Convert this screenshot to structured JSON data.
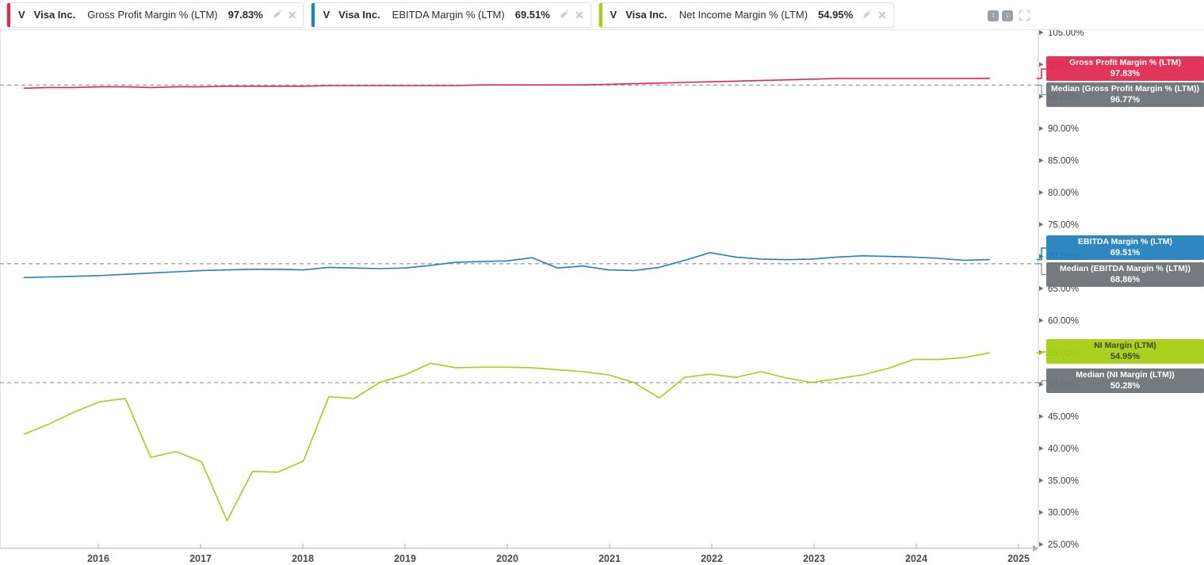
{
  "legend": {
    "pills": [
      {
        "ticker": "V",
        "company": "Visa Inc.",
        "metric": "Gross Profit Margin % (LTM)",
        "value": "97.83%",
        "color": "#e0294f"
      },
      {
        "ticker": "V",
        "company": "Visa Inc.",
        "metric": "EBITDA Margin % (LTM)",
        "value": "69.51%",
        "color": "#2180be"
      },
      {
        "ticker": "V",
        "company": "Visa Inc.",
        "metric": "Net Income Margin % (LTM)",
        "value": "54.95%",
        "color": "#a6ce13"
      }
    ]
  },
  "toolbar": {
    "up_label": "↑",
    "down_label": "↓"
  },
  "chart_data": {
    "type": "line",
    "frequency": "quarterly",
    "start_year_frac": 2015.27,
    "end_year_frac": 2024.72,
    "x_axis": {
      "ticks": [
        "2016",
        "2017",
        "2018",
        "2019",
        "2020",
        "2021",
        "2022",
        "2023",
        "2024",
        "2025"
      ]
    },
    "y_axis": {
      "min": 25,
      "max": 105,
      "step": 5,
      "ticks": [
        "105.00%",
        "100.00%",
        "95.00%",
        "90.00%",
        "85.00%",
        "80.00%",
        "75.00%",
        "70.00%",
        "65.00%",
        "60.00%",
        "55.00%",
        "50.00%",
        "45.00%",
        "40.00%",
        "35.00%",
        "30.00%",
        "25.00%"
      ]
    },
    "grid": "off",
    "legend_position": "top",
    "series": [
      {
        "name": "Gross Profit Margin % (LTM)",
        "current": "97.83%",
        "color": "#e0294f",
        "label_fg": "#ffffff",
        "values": [
          96.3,
          96.4,
          96.4,
          96.5,
          96.5,
          96.4,
          96.5,
          96.5,
          96.6,
          96.6,
          96.6,
          96.6,
          96.7,
          96.7,
          96.7,
          96.7,
          96.7,
          96.7,
          96.8,
          96.8,
          96.8,
          96.8,
          96.8,
          96.9,
          97.0,
          97.1,
          97.2,
          97.3,
          97.4,
          97.5,
          97.6,
          97.7,
          97.8,
          97.8,
          97.8,
          97.8,
          97.8,
          97.8,
          97.83
        ]
      },
      {
        "name": "EBITDA Margin % (LTM)",
        "current": "69.51%",
        "color": "#2180be",
        "label_fg": "#ffffff",
        "values": [
          66.7,
          66.8,
          66.9,
          67.0,
          67.2,
          67.4,
          67.6,
          67.8,
          67.9,
          68.0,
          68.0,
          67.9,
          68.3,
          68.2,
          68.1,
          68.2,
          68.6,
          69.1,
          69.2,
          69.3,
          69.8,
          68.2,
          68.5,
          67.9,
          67.8,
          68.3,
          69.4,
          70.6,
          69.9,
          69.6,
          69.5,
          69.6,
          69.9,
          70.1,
          70.0,
          69.9,
          69.7,
          69.4,
          69.51
        ]
      },
      {
        "name": "NI Margin (LTM)",
        "current": "54.95%",
        "color": "#a6ce13",
        "label_fg": "#333b10",
        "values": [
          42.2,
          43.8,
          45.7,
          47.3,
          47.8,
          38.6,
          39.5,
          37.9,
          28.7,
          36.4,
          36.3,
          38.0,
          48.1,
          47.8,
          50.3,
          51.5,
          53.3,
          52.6,
          52.7,
          52.7,
          52.6,
          52.3,
          52.0,
          51.5,
          50.3,
          47.9,
          51.1,
          51.6,
          51.1,
          52.0,
          51.0,
          50.3,
          50.9,
          51.5,
          52.5,
          53.9,
          53.9,
          54.2,
          54.95
        ]
      }
    ],
    "medians": [
      {
        "name": "Median (Gross Profit Margin % (LTM))",
        "value": 96.77,
        "label": "96.77%"
      },
      {
        "name": "Median (EBITDA Margin % (LTM))",
        "value": 68.86,
        "label": "68.86%"
      },
      {
        "name": "Median (NI Margin (LTM))",
        "value": 50.28,
        "label": "50.28%"
      }
    ],
    "colors": {
      "median_box": "#6d7278",
      "median_dash": "#9aa0a6",
      "axis_text": "#3f3f3f",
      "year_text": "#4a4a4a"
    }
  }
}
